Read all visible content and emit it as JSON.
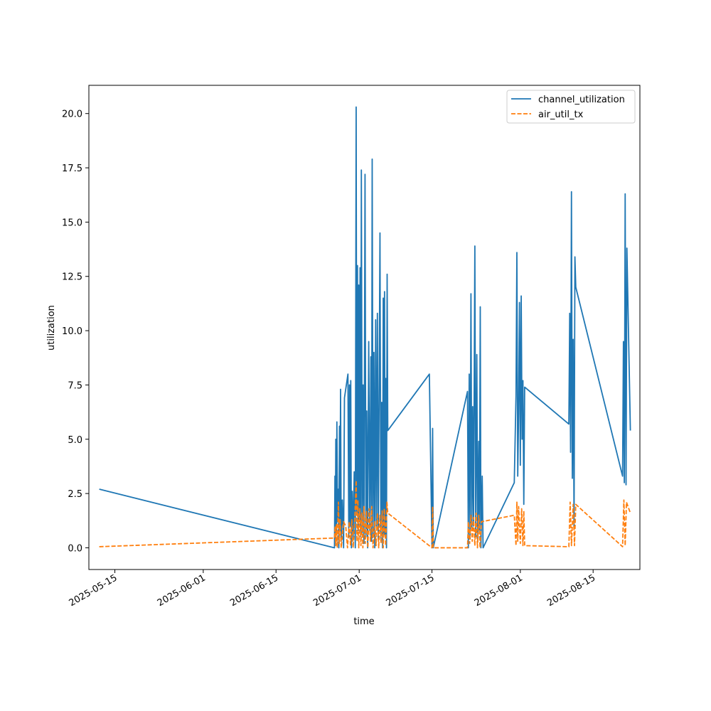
{
  "chart_data": {
    "type": "line",
    "title": "",
    "xlabel": "time",
    "ylabel": "utilization",
    "x_axis_type": "date",
    "xlim": [
      "2025-05-10",
      "2025-08-24"
    ],
    "ylim": [
      -1.0,
      21.3
    ],
    "x_ticks": [
      "2025-05-15",
      "2025-06-01",
      "2025-06-15",
      "2025-07-01",
      "2025-07-15",
      "2025-08-01",
      "2025-08-15"
    ],
    "y_ticks": [
      0.0,
      2.5,
      5.0,
      7.5,
      10.0,
      12.5,
      15.0,
      17.5,
      20.0
    ],
    "y_tick_labels": [
      "0.0",
      "2.5",
      "5.0",
      "7.5",
      "10.0",
      "12.5",
      "15.0",
      "17.5",
      "20.0"
    ],
    "grid": false,
    "legend_position": "top-right",
    "series": [
      {
        "name": "channel_utilization",
        "color": "#1f77b4",
        "style": "solid",
        "points": [
          [
            "2025-05-12T00:00",
            2.7
          ],
          [
            "2025-06-26T06:00",
            0.0
          ],
          [
            "2025-06-26T08:00",
            3.3
          ],
          [
            "2025-06-26T10:00",
            0.4
          ],
          [
            "2025-06-26T12:00",
            5.0
          ],
          [
            "2025-06-26T15:00",
            0.6
          ],
          [
            "2025-06-26T17:00",
            5.8
          ],
          [
            "2025-06-26T20:00",
            1.2
          ],
          [
            "2025-06-27T00:00",
            2.7
          ],
          [
            "2025-06-27T02:00",
            0.0
          ],
          [
            "2025-06-27T05:00",
            5.6
          ],
          [
            "2025-06-27T07:00",
            0.8
          ],
          [
            "2025-06-27T10:00",
            7.3
          ],
          [
            "2025-06-27T13:00",
            0.3
          ],
          [
            "2025-06-27T18:00",
            2.2
          ],
          [
            "2025-06-28T00:00",
            0.0
          ],
          [
            "2025-06-28T04:00",
            6.9
          ],
          [
            "2025-06-28T20:00",
            8.0
          ],
          [
            "2025-06-29T00:00",
            0.5
          ],
          [
            "2025-06-29T03:00",
            7.5
          ],
          [
            "2025-06-29T06:00",
            1.0
          ],
          [
            "2025-06-29T09:00",
            7.7
          ],
          [
            "2025-06-29T12:00",
            0.0
          ],
          [
            "2025-06-29T16:00",
            2.6
          ],
          [
            "2025-06-29T20:00",
            0.4
          ],
          [
            "2025-06-30T01:00",
            3.5
          ],
          [
            "2025-06-30T06:00",
            0.0
          ],
          [
            "2025-06-30T10:00",
            20.3
          ],
          [
            "2025-06-30T13:00",
            1.5
          ],
          [
            "2025-06-30T16:00",
            13.0
          ],
          [
            "2025-06-30T19:00",
            0.8
          ],
          [
            "2025-06-30T22:00",
            12.1
          ],
          [
            "2025-07-01T01:00",
            1.2
          ],
          [
            "2025-07-01T04:00",
            12.9
          ],
          [
            "2025-07-01T07:00",
            0.5
          ],
          [
            "2025-07-01T10:00",
            17.4
          ],
          [
            "2025-07-01T14:00",
            0.7
          ],
          [
            "2025-07-01T18:00",
            7.5
          ],
          [
            "2025-07-01T22:00",
            0.2
          ],
          [
            "2025-07-02T03:00",
            17.2
          ],
          [
            "2025-07-02T07:00",
            0.5
          ],
          [
            "2025-07-02T11:00",
            6.3
          ],
          [
            "2025-07-02T15:00",
            0.0
          ],
          [
            "2025-07-02T20:00",
            9.5
          ],
          [
            "2025-07-03T01:00",
            0.8
          ],
          [
            "2025-07-03T06:00",
            8.8
          ],
          [
            "2025-07-03T09:00",
            0.3
          ],
          [
            "2025-07-03T12:00",
            17.9
          ],
          [
            "2025-07-03T16:00",
            0.6
          ],
          [
            "2025-07-03T20:00",
            9.0
          ],
          [
            "2025-07-04T00:00",
            0.0
          ],
          [
            "2025-07-04T04:00",
            10.5
          ],
          [
            "2025-07-04T08:00",
            1.0
          ],
          [
            "2025-07-04T12:00",
            10.8
          ],
          [
            "2025-07-04T16:00",
            0.4
          ],
          [
            "2025-07-04T19:00",
            5.2
          ],
          [
            "2025-07-05T00:00",
            14.5
          ],
          [
            "2025-07-05T04:00",
            0.3
          ],
          [
            "2025-07-05T08:00",
            6.7
          ],
          [
            "2025-07-05T12:00",
            0.0
          ],
          [
            "2025-07-05T15:00",
            11.5
          ],
          [
            "2025-07-05T18:00",
            0.6
          ],
          [
            "2025-07-05T21:00",
            11.8
          ],
          [
            "2025-07-06T00:00",
            0.5
          ],
          [
            "2025-07-06T03:00",
            7.8
          ],
          [
            "2025-07-06T06:00",
            0.0
          ],
          [
            "2025-07-06T09:00",
            12.6
          ],
          [
            "2025-07-06T12:00",
            5.4
          ],
          [
            "2025-07-14T12:00",
            8.0
          ],
          [
            "2025-07-15T00:00",
            0.0
          ],
          [
            "2025-07-15T03:00",
            5.5
          ],
          [
            "2025-07-15T06:00",
            0.0
          ],
          [
            "2025-07-21T20:00",
            7.2
          ],
          [
            "2025-07-22T00:00",
            0.0
          ],
          [
            "2025-07-22T04:00",
            8.0
          ],
          [
            "2025-07-22T08:00",
            0.4
          ],
          [
            "2025-07-22T12:00",
            11.7
          ],
          [
            "2025-07-22T16:00",
            0.8
          ],
          [
            "2025-07-22T20:00",
            6.5
          ],
          [
            "2025-07-23T00:00",
            1.0
          ],
          [
            "2025-07-23T06:00",
            13.9
          ],
          [
            "2025-07-23T10:00",
            0.5
          ],
          [
            "2025-07-23T15:00",
            8.9
          ],
          [
            "2025-07-23T19:00",
            0.3
          ],
          [
            "2025-07-24T00:00",
            4.9
          ],
          [
            "2025-07-24T03:00",
            0.8
          ],
          [
            "2025-07-24T07:00",
            11.1
          ],
          [
            "2025-07-24T10:00",
            0.0
          ],
          [
            "2025-07-24T16:00",
            3.3
          ],
          [
            "2025-07-24T20:00",
            0.0
          ],
          [
            "2025-07-30T20:00",
            3.0
          ],
          [
            "2025-07-31T04:00",
            7.0
          ],
          [
            "2025-07-31T08:00",
            13.6
          ],
          [
            "2025-07-31T12:00",
            3.3
          ],
          [
            "2025-07-31T16:00",
            6.2
          ],
          [
            "2025-07-31T20:00",
            11.3
          ],
          [
            "2025-08-01T00:00",
            3.8
          ],
          [
            "2025-08-01T04:00",
            11.6
          ],
          [
            "2025-08-01T08:00",
            5.0
          ],
          [
            "2025-08-01T12:00",
            7.7
          ],
          [
            "2025-08-01T16:00",
            2.0
          ],
          [
            "2025-08-01T20:00",
            7.4
          ],
          [
            "2025-08-10T08:00",
            5.7
          ],
          [
            "2025-08-10T12:00",
            10.8
          ],
          [
            "2025-08-10T16:00",
            4.4
          ],
          [
            "2025-08-10T20:00",
            16.4
          ],
          [
            "2025-08-11T00:00",
            3.2
          ],
          [
            "2025-08-11T04:00",
            9.6
          ],
          [
            "2025-08-11T08:00",
            1.0
          ],
          [
            "2025-08-11T12:00",
            13.4
          ],
          [
            "2025-08-11T16:00",
            12.0
          ],
          [
            "2025-08-20T16:00",
            3.3
          ],
          [
            "2025-08-20T20:00",
            9.5
          ],
          [
            "2025-08-21T00:00",
            3.0
          ],
          [
            "2025-08-21T04:00",
            16.3
          ],
          [
            "2025-08-21T08:00",
            2.9
          ],
          [
            "2025-08-21T12:00",
            13.8
          ],
          [
            "2025-08-22T04:00",
            5.4
          ]
        ]
      },
      {
        "name": "air_util_tx",
        "color": "#ff7f0e",
        "style": "dashed",
        "points": [
          [
            "2025-05-12T00:00",
            0.05
          ],
          [
            "2025-06-26T06:00",
            0.45
          ],
          [
            "2025-06-26T09:00",
            1.0
          ],
          [
            "2025-06-26T12:00",
            0.1
          ],
          [
            "2025-06-26T15:00",
            1.1
          ],
          [
            "2025-06-26T19:00",
            0.0
          ],
          [
            "2025-06-27T00:00",
            2.1
          ],
          [
            "2025-06-27T04:00",
            0.2
          ],
          [
            "2025-06-27T08:00",
            1.3
          ],
          [
            "2025-06-27T13:00",
            0.0
          ],
          [
            "2025-06-28T00:00",
            1.2
          ],
          [
            "2025-06-28T10:00",
            1.0
          ],
          [
            "2025-06-28T18:00",
            0.0
          ],
          [
            "2025-06-29T02:00",
            1.2
          ],
          [
            "2025-06-29T08:00",
            0.1
          ],
          [
            "2025-06-29T14:00",
            1.3
          ],
          [
            "2025-06-29T20:00",
            0.0
          ],
          [
            "2025-06-30T04:00",
            1.4
          ],
          [
            "2025-06-30T10:00",
            3.1
          ],
          [
            "2025-06-30T14:00",
            0.3
          ],
          [
            "2025-06-30T18:00",
            2.2
          ],
          [
            "2025-06-30T22:00",
            0.0
          ],
          [
            "2025-07-01T03:00",
            1.8
          ],
          [
            "2025-07-01T08:00",
            0.1
          ],
          [
            "2025-07-01T12:00",
            1.6
          ],
          [
            "2025-07-01T17:00",
            0.0
          ],
          [
            "2025-07-01T22:00",
            1.9
          ],
          [
            "2025-07-02T04:00",
            0.2
          ],
          [
            "2025-07-02T10:00",
            1.7
          ],
          [
            "2025-07-02T16:00",
            0.0
          ],
          [
            "2025-07-02T22:00",
            1.8
          ],
          [
            "2025-07-03T04:00",
            0.3
          ],
          [
            "2025-07-03T10:00",
            1.9
          ],
          [
            "2025-07-03T16:00",
            0.0
          ],
          [
            "2025-07-04T00:00",
            1.2
          ],
          [
            "2025-07-04T06:00",
            0.1
          ],
          [
            "2025-07-04T12:00",
            1.6
          ],
          [
            "2025-07-04T18:00",
            0.0
          ],
          [
            "2025-07-05T00:00",
            1.5
          ],
          [
            "2025-07-05T05:00",
            0.2
          ],
          [
            "2025-07-05T10:00",
            1.7
          ],
          [
            "2025-07-05T15:00",
            0.0
          ],
          [
            "2025-07-05T20:00",
            1.8
          ],
          [
            "2025-07-06T02:00",
            0.1
          ],
          [
            "2025-07-06T08:00",
            2.1
          ],
          [
            "2025-07-06T12:00",
            1.6
          ],
          [
            "2025-07-15T00:00",
            0.0
          ],
          [
            "2025-07-15T03:00",
            1.9
          ],
          [
            "2025-07-15T06:00",
            0.0
          ],
          [
            "2025-07-21T20:00",
            0.0
          ],
          [
            "2025-07-22T00:00",
            1.2
          ],
          [
            "2025-07-22T06:00",
            0.2
          ],
          [
            "2025-07-22T12:00",
            1.5
          ],
          [
            "2025-07-22T18:00",
            0.3
          ],
          [
            "2025-07-23T00:00",
            1.4
          ],
          [
            "2025-07-23T06:00",
            0.1
          ],
          [
            "2025-07-23T12:00",
            1.6
          ],
          [
            "2025-07-23T18:00",
            0.0
          ],
          [
            "2025-07-24T00:00",
            1.5
          ],
          [
            "2025-07-24T06:00",
            0.0
          ],
          [
            "2025-07-24T12:00",
            1.2
          ],
          [
            "2025-07-30T20:00",
            1.5
          ],
          [
            "2025-07-31T04:00",
            0.1
          ],
          [
            "2025-07-31T08:00",
            2.1
          ],
          [
            "2025-07-31T12:00",
            0.3
          ],
          [
            "2025-07-31T16:00",
            1.9
          ],
          [
            "2025-08-01T00:00",
            0.2
          ],
          [
            "2025-08-01T06:00",
            1.8
          ],
          [
            "2025-08-01T12:00",
            0.1
          ],
          [
            "2025-08-01T16:00",
            1.7
          ],
          [
            "2025-08-01T20:00",
            0.1
          ],
          [
            "2025-08-10T08:00",
            0.05
          ],
          [
            "2025-08-10T14:00",
            2.1
          ],
          [
            "2025-08-10T20:00",
            0.1
          ],
          [
            "2025-08-11T04:00",
            2.0
          ],
          [
            "2025-08-11T10:00",
            0.1
          ],
          [
            "2025-08-11T16:00",
            2.0
          ],
          [
            "2025-08-20T16:00",
            0.05
          ],
          [
            "2025-08-20T22:00",
            2.2
          ],
          [
            "2025-08-21T04:00",
            0.1
          ],
          [
            "2025-08-21T10:00",
            2.1
          ],
          [
            "2025-08-22T04:00",
            1.6
          ]
        ]
      }
    ]
  }
}
